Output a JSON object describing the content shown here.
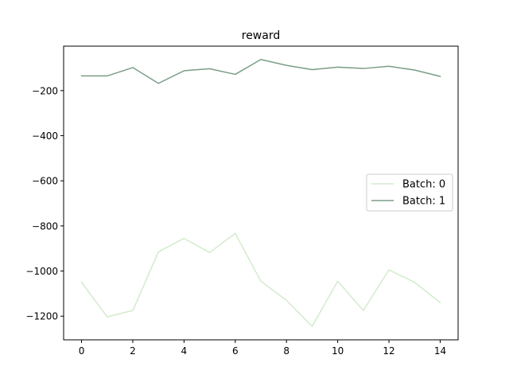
{
  "chart_data": {
    "type": "line",
    "title": "reward",
    "xlabel": "",
    "ylabel": "",
    "x": [
      0,
      1,
      2,
      3,
      4,
      5,
      6,
      7,
      8,
      9,
      10,
      11,
      12,
      13,
      14
    ],
    "xlim": [
      -0.7,
      14.7
    ],
    "ylim": [
      -1305,
      -3
    ],
    "x_ticks": [
      0,
      2,
      4,
      6,
      8,
      10,
      12,
      14
    ],
    "y_ticks": [
      -1200,
      -1000,
      -800,
      -600,
      -400,
      -200
    ],
    "x_tick_labels": [
      "0",
      "2",
      "4",
      "6",
      "8",
      "10",
      "12",
      "14"
    ],
    "y_tick_labels": [
      "−1200",
      "−1000",
      "−800",
      "−600",
      "−400",
      "−200"
    ],
    "grid": false,
    "legend_position": "center-right",
    "series": [
      {
        "name": "Batch: 0",
        "color": "#d3ebcd",
        "values": [
          -1050,
          -1203,
          -1175,
          -915,
          -855,
          -918,
          -833,
          -1045,
          -1130,
          -1245,
          -1045,
          -1175,
          -995,
          -1050,
          -1140
        ]
      },
      {
        "name": "Batch: 1",
        "color": "#7a9e86",
        "values": [
          -135,
          -135,
          -98,
          -168,
          -112,
          -103,
          -128,
          -62,
          -88,
          -107,
          -96,
          -102,
          -92,
          -109,
          -137
        ]
      }
    ]
  }
}
